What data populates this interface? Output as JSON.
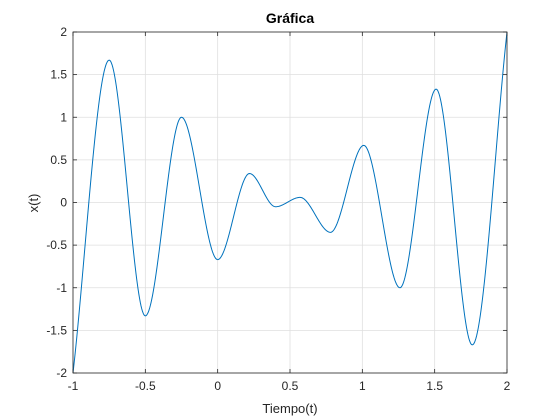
{
  "chart_data": {
    "type": "line",
    "title": "Gráfica",
    "xlabel": "Tiempo(t)",
    "ylabel": "x(t)",
    "xlim": [
      -1,
      2
    ],
    "ylim": [
      -2,
      2
    ],
    "grid": true,
    "xticks": [
      -1,
      -0.5,
      0,
      0.5,
      1,
      1.5,
      2
    ],
    "xtick_labels": [
      "-1",
      "-0.5",
      "0",
      "0.5",
      "1",
      "1.5",
      "2"
    ],
    "yticks": [
      -2,
      -1.5,
      -1,
      -0.5,
      0,
      0.5,
      1,
      1.5,
      2
    ],
    "ytick_labels": [
      "-2",
      "-1.5",
      "-1",
      "-0.5",
      "0",
      "0.5",
      "1",
      "1.5",
      "2"
    ],
    "series": [
      {
        "color": "#0072bd",
        "x": [
          -1,
          -0.75,
          -0.5,
          -0.25,
          0,
          0.22,
          0.4,
          0.57,
          0.78,
          1.01,
          1.26,
          1.51,
          1.76,
          2
        ],
        "y": [
          -2,
          1.67,
          -1.33,
          1.0,
          -0.67,
          0.34,
          -0.05,
          0.06,
          -0.35,
          0.67,
          -1.0,
          1.33,
          -1.67,
          2
        ]
      }
    ]
  }
}
